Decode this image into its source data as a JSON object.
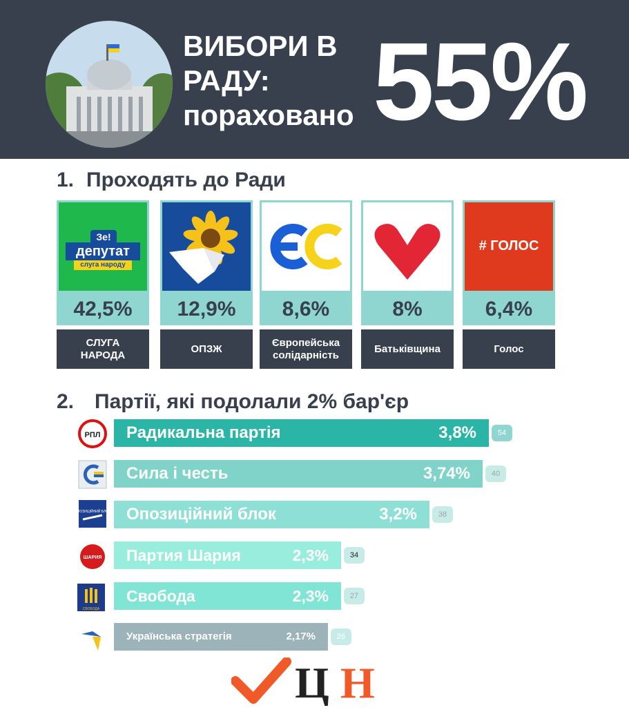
{
  "header": {
    "title_line1": "ВИБОРИ В",
    "title_line2": "РАДУ:",
    "title_line3": "пораховано",
    "counted_percent": "55%"
  },
  "section1": {
    "number": "1.",
    "title": "Проходять до Ради",
    "parties": [
      {
        "logo_text": "Зе!",
        "logo_text2": "депутат",
        "logo_text3": "слуга народу",
        "percent": "42,5%",
        "name_line1": "СЛУГА",
        "name_line2": "НАРОДА",
        "color": "#1fb84c"
      },
      {
        "percent": "12,9%",
        "name_line1": "ОПЗЖ",
        "name_line2": "",
        "color": "#174c9c"
      },
      {
        "percent": "8,6%",
        "name_line1": "Європейська",
        "name_line2": "солідарність",
        "color": "#ffffff"
      },
      {
        "percent": "8%",
        "name_line1": "Батьківщина",
        "name_line2": "",
        "color": "#ffffff"
      },
      {
        "logo_text": "# ГОЛОС",
        "percent": "6,4%",
        "name_line1": "Голос",
        "name_line2": "",
        "color": "#e03a1e"
      }
    ]
  },
  "section2": {
    "number": "2.",
    "title": "Партії, які подолали 2% бар'єр"
  },
  "chart_data": {
    "type": "bar",
    "title": "Партії, які подолали 2% бар'єр",
    "categories": [
      "Радикальна партія",
      "Сила і честь",
      "Опозиційний блок",
      "Партия Шария",
      "Свобода",
      "Українська стратегія"
    ],
    "series": [
      {
        "values": [
          3.8,
          3.74,
          3.2,
          2.3,
          2.3,
          2.17
        ]
      }
    ],
    "value_labels": [
      "3,8%",
      "3,74%",
      "3,2%",
      "2,3%",
      "2,3%",
      "2,17%"
    ],
    "badges": [
      "54",
      "40",
      "38",
      "34",
      "27",
      "26"
    ],
    "xlim": [
      0,
      3.8
    ],
    "colors": [
      "#2bb5a7",
      "#7fd3c9",
      "#8ee0d6",
      "#98eddc",
      "#80e5d4",
      "#9cb4b9"
    ],
    "grid": false,
    "legend": "none"
  },
  "bar_logos": [
    {
      "text": "РПЛ"
    },
    {
      "text": ""
    },
    {
      "text": "ОПОЗИЦІЙНИЙ БЛОК"
    },
    {
      "text": "ШАРИЯ"
    },
    {
      "text": "СВОБОДА"
    },
    {
      "text": ""
    }
  ],
  "footer": {
    "brand": "ЦН",
    "accent": "#f05a28"
  }
}
